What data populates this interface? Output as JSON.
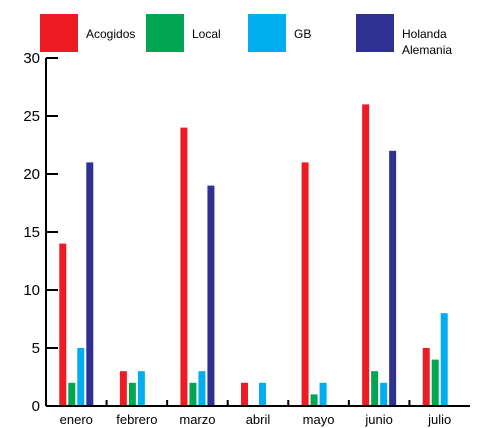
{
  "chart_data": {
    "type": "bar",
    "categories": [
      "enero",
      "febrero",
      "marzo",
      "abril",
      "mayo",
      "junio",
      "julio"
    ],
    "series": [
      {
        "name": "Acogidos",
        "color": "#ed1c24",
        "values": [
          14,
          3,
          24,
          2,
          21,
          26,
          5
        ]
      },
      {
        "name": "Local",
        "color": "#00a651",
        "values": [
          2,
          2,
          2,
          0,
          1,
          3,
          4
        ]
      },
      {
        "name": "GB",
        "color": "#00aeef",
        "values": [
          5,
          3,
          3,
          2,
          2,
          2,
          8
        ]
      },
      {
        "name": "Holanda\nAlemania",
        "color": "#2e3192",
        "values": [
          21,
          0,
          19,
          0,
          0,
          22,
          0
        ]
      }
    ],
    "yticks": [
      "0",
      "5",
      "10",
      "15",
      "20",
      "25",
      "30"
    ],
    "ylim": [
      0,
      30
    ],
    "grid": false,
    "legend_position": "top"
  }
}
